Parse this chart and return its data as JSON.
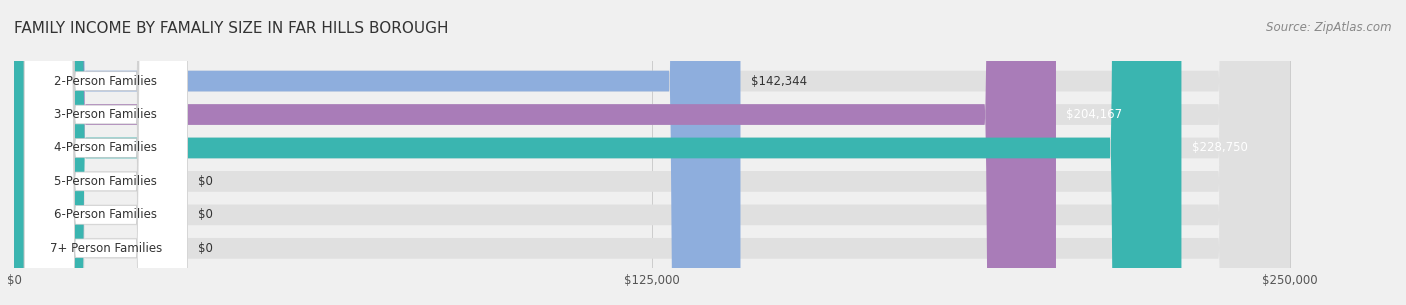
{
  "title": "FAMILY INCOME BY FAMALIY SIZE IN FAR HILLS BOROUGH",
  "source": "Source: ZipAtlas.com",
  "categories": [
    "2-Person Families",
    "3-Person Families",
    "4-Person Families",
    "5-Person Families",
    "6-Person Families",
    "7+ Person Families"
  ],
  "values": [
    142344,
    204167,
    228750,
    0,
    0,
    0
  ],
  "bar_colors": [
    "#8eaedd",
    "#a97cb8",
    "#3ab5b0",
    "#a8a8d8",
    "#f08080",
    "#f4c08c"
  ],
  "label_colors": [
    "#333333",
    "#ffffff",
    "#ffffff",
    "#333333",
    "#333333",
    "#333333"
  ],
  "value_labels": [
    "$142,344",
    "$204,167",
    "$228,750",
    "$0",
    "$0",
    "$0"
  ],
  "xlim": [
    0,
    250000
  ],
  "xtick_values": [
    0,
    125000,
    250000
  ],
  "xtick_labels": [
    "$0",
    "$125,000",
    "$250,000"
  ],
  "background_color": "#f0f0f0",
  "bar_bg_color": "#e8e8e8",
  "title_fontsize": 11,
  "source_fontsize": 8.5,
  "label_fontsize": 8.5,
  "value_fontsize": 8.5,
  "bar_height": 0.62,
  "fig_bg_color": "#f0f0f0"
}
